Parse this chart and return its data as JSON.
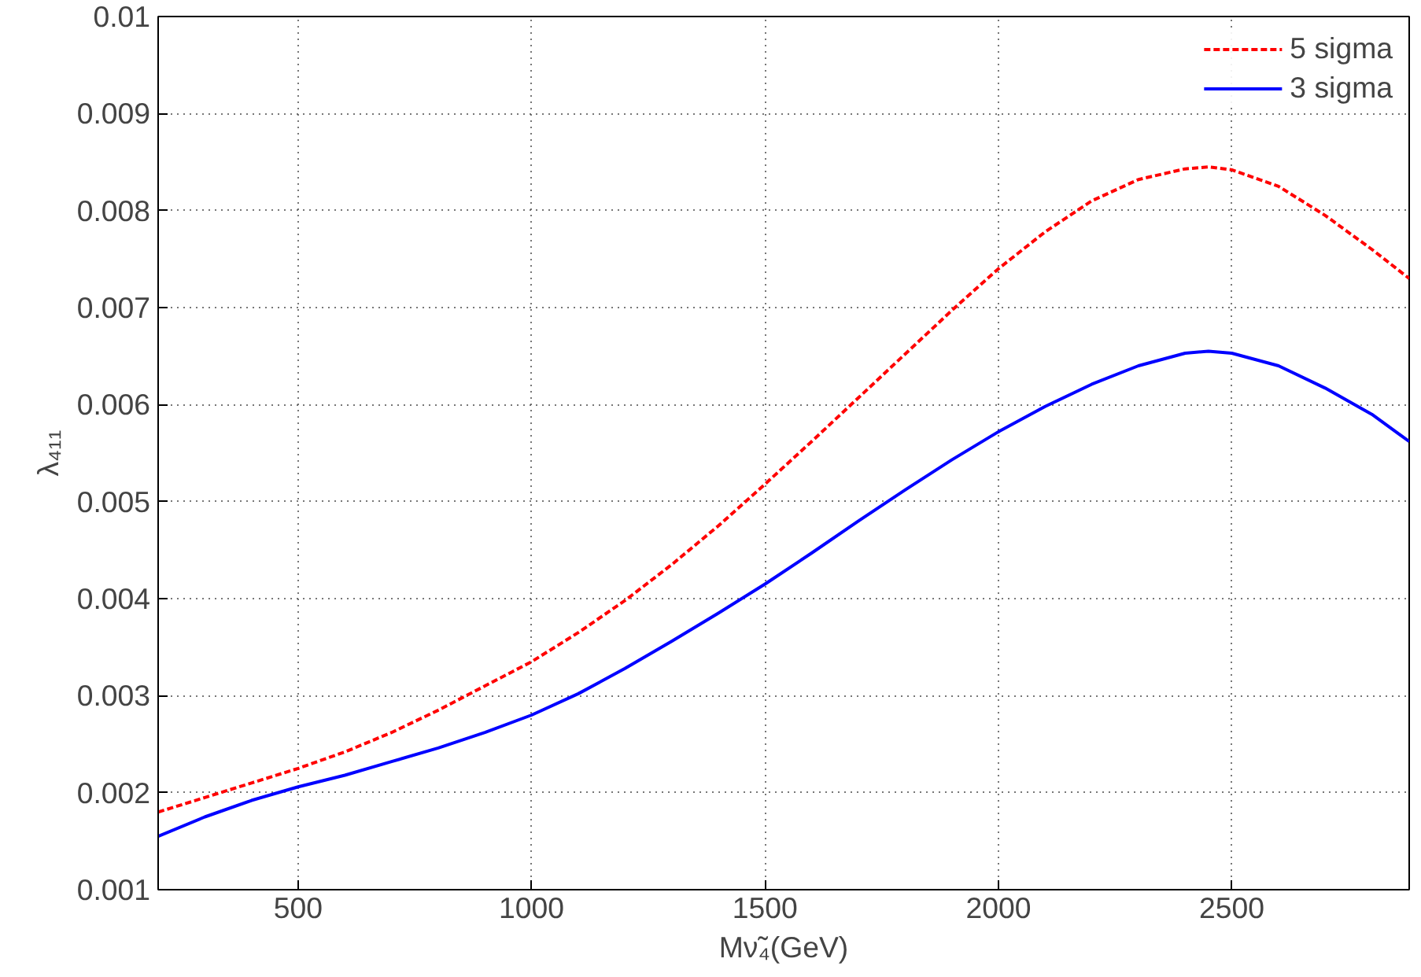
{
  "chart_data": {
    "type": "line",
    "xlabel": "Mν̃₄(GeV)",
    "ylabel": "λ₄₁₁",
    "xlim": [
      200,
      2880
    ],
    "ylim": [
      0.001,
      0.01
    ],
    "xticks": [
      500,
      1000,
      1500,
      2000,
      2500
    ],
    "yticks": [
      0.001,
      0.002,
      0.003,
      0.004,
      0.005,
      0.006,
      0.007,
      0.008,
      0.009,
      0.01
    ],
    "grid": true,
    "legend": "top right",
    "marker": "none",
    "series": [
      {
        "name": "5 sigma",
        "color": "#ff0000",
        "line_style": "dashed",
        "x": [
          200,
          300,
          400,
          500,
          600,
          700,
          800,
          900,
          1000,
          1100,
          1200,
          1300,
          1400,
          1500,
          1600,
          1700,
          1800,
          1900,
          2000,
          2100,
          2200,
          2300,
          2400,
          2450,
          2500,
          2600,
          2700,
          2800,
          2880
        ],
        "values": [
          0.0018,
          0.00195,
          0.0021,
          0.00225,
          0.00242,
          0.00262,
          0.00285,
          0.0031,
          0.00335,
          0.00365,
          0.00398,
          0.00435,
          0.00475,
          0.00518,
          0.00562,
          0.00607,
          0.00652,
          0.00697,
          0.0074,
          0.00778,
          0.0081,
          0.00832,
          0.00843,
          0.00845,
          0.00842,
          0.00825,
          0.00795,
          0.0076,
          0.0073
        ]
      },
      {
        "name": "3 sigma",
        "color": "#0000ff",
        "line_style": "solid",
        "x": [
          200,
          300,
          400,
          500,
          600,
          700,
          800,
          900,
          1000,
          1100,
          1200,
          1300,
          1400,
          1500,
          1600,
          1700,
          1800,
          1900,
          2000,
          2100,
          2200,
          2300,
          2400,
          2450,
          2500,
          2600,
          2700,
          2800,
          2880
        ],
        "values": [
          0.00155,
          0.00175,
          0.00192,
          0.00206,
          0.00218,
          0.00232,
          0.00246,
          0.00262,
          0.0028,
          0.00302,
          0.00328,
          0.00356,
          0.00385,
          0.00415,
          0.00447,
          0.0048,
          0.00512,
          0.00543,
          0.00572,
          0.00598,
          0.00621,
          0.0064,
          0.00653,
          0.00655,
          0.00653,
          0.0064,
          0.00617,
          0.0059,
          0.00562
        ]
      }
    ]
  }
}
